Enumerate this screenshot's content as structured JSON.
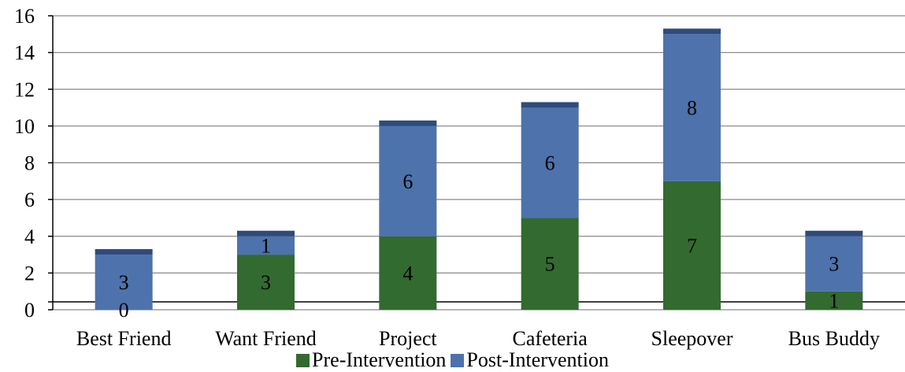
{
  "chart_data": {
    "type": "bar",
    "stacked": true,
    "categories": [
      "Best Friend",
      "Want Friend",
      "Project",
      "Cafeteria",
      "Sleepover",
      "Bus Buddy"
    ],
    "series": [
      {
        "name": "Pre-Intervention",
        "color": "#336a30",
        "values": [
          0,
          3,
          4,
          5,
          7,
          1
        ]
      },
      {
        "name": "Post-Intervention",
        "color": "#4e72ab",
        "values": [
          3,
          1,
          6,
          6,
          8,
          3
        ]
      }
    ],
    "data_labels": {
      "Pre-Intervention": [
        "0",
        "3",
        "4",
        "5",
        "7",
        "1"
      ],
      "Post-Intervention": [
        "3",
        "1",
        "6",
        "6",
        "8",
        "3"
      ]
    },
    "y_ticks": [
      "0",
      "2",
      "4",
      "6",
      "8",
      "10",
      "12",
      "14",
      "16"
    ],
    "ylim": [
      0,
      16
    ],
    "grid": true,
    "legend_position": "bottom"
  }
}
